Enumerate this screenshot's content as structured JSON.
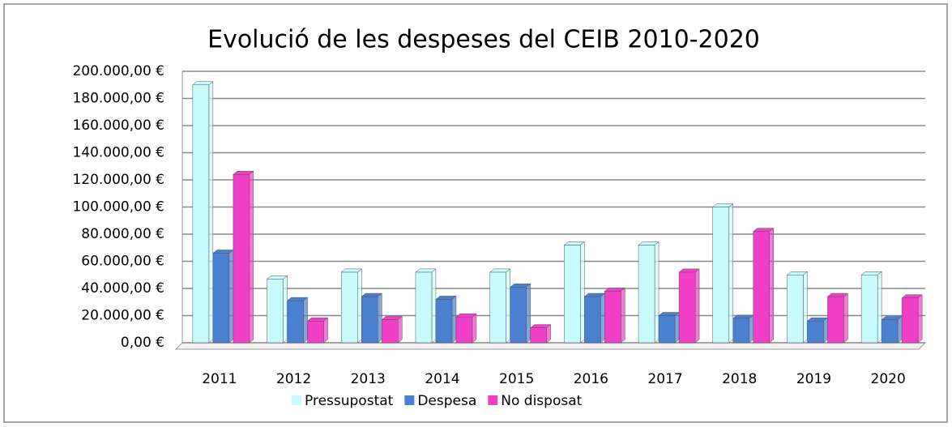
{
  "chart_data": {
    "type": "bar3d",
    "title": "Evolució de les despeses del CEIB 2010-2020",
    "categories": [
      "2011",
      "2012",
      "2013",
      "2014",
      "2015",
      "2016",
      "2017",
      "2018",
      "2019",
      "2020"
    ],
    "series": [
      {
        "name": "Pressupostat",
        "color": "#c8fcfc",
        "values": [
          190000,
          47000,
          52000,
          52000,
          52000,
          72000,
          72000,
          100000,
          50000,
          50000
        ]
      },
      {
        "name": "Despesa",
        "color": "#4a80cf",
        "values": [
          66000,
          31000,
          34000,
          32000,
          41000,
          34000,
          20000,
          18000,
          16000,
          17000
        ]
      },
      {
        "name": "No disposat",
        "color": "#f23fc8",
        "values": [
          124000,
          16000,
          17000,
          19000,
          11000,
          38000,
          52000,
          82000,
          34000,
          33000
        ]
      }
    ],
    "ylim": [
      0,
      200000
    ],
    "yticks": [
      {
        "value": 0,
        "label": "0,00 €"
      },
      {
        "value": 20000,
        "label": "20.000,00 €"
      },
      {
        "value": 40000,
        "label": "40.000,00 €"
      },
      {
        "value": 60000,
        "label": "60.000,00 €"
      },
      {
        "value": 80000,
        "label": "80.000,00 €"
      },
      {
        "value": 100000,
        "label": "100.000,00 €"
      },
      {
        "value": 120000,
        "label": "120.000,00 €"
      },
      {
        "value": 140000,
        "label": "140.000,00 €"
      },
      {
        "value": 160000,
        "label": "160.000,00 €"
      },
      {
        "value": 180000,
        "label": "180.000,00 €"
      },
      {
        "value": 200000,
        "label": "200.000,00 €"
      }
    ],
    "grid": true,
    "legend": "bottom"
  }
}
